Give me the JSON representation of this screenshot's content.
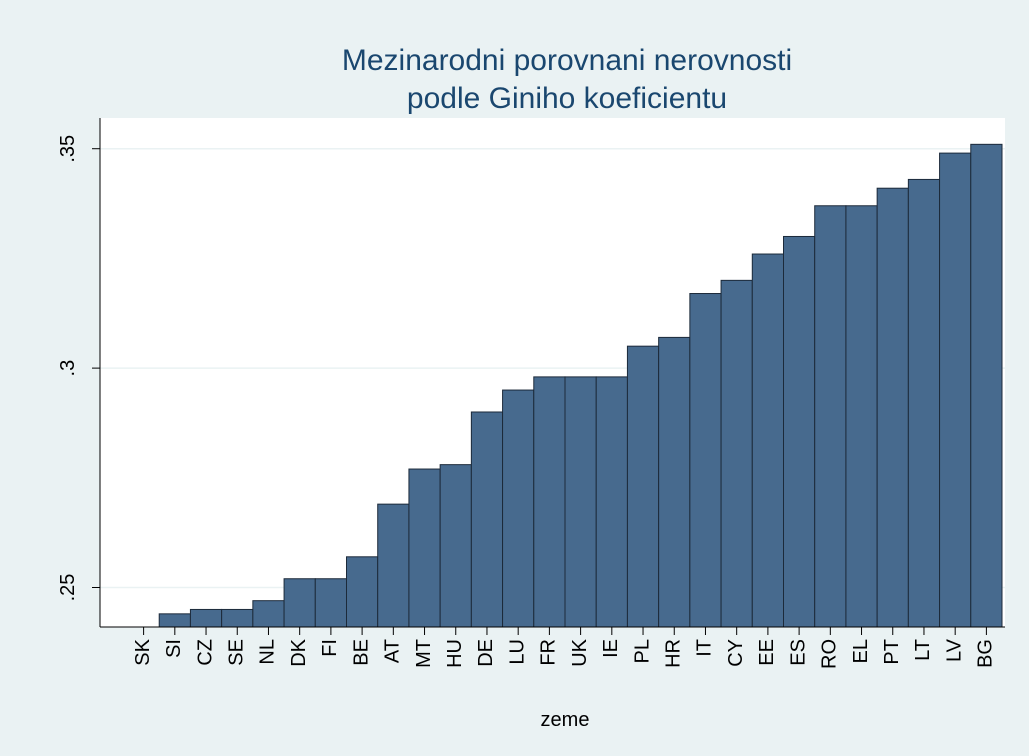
{
  "chart_data": {
    "type": "bar",
    "title": [
      "Mezinarodni porovnani nerovnosti",
      "podle Giniho koeficientu"
    ],
    "x_label": "zeme",
    "categories": [
      "SK",
      "SI",
      "CZ",
      "SE",
      "NL",
      "DK",
      "FI",
      "BE",
      "AT",
      "MT",
      "HU",
      "DE",
      "LU",
      "FR",
      "UK",
      "IE",
      "PL",
      "HR",
      "IT",
      "CY",
      "EE",
      "ES",
      "RO",
      "EL",
      "PT",
      "LT",
      "LV",
      "BG"
    ],
    "values": [
      0.237,
      0.244,
      0.245,
      0.245,
      0.247,
      0.252,
      0.252,
      0.257,
      0.269,
      0.277,
      0.278,
      0.29,
      0.295,
      0.298,
      0.298,
      0.298,
      0.305,
      0.307,
      0.317,
      0.32,
      0.326,
      0.33,
      0.337,
      0.337,
      0.341,
      0.343,
      0.349,
      0.351
    ],
    "color": "#476a8e",
    "ylim": [
      0.241,
      0.357
    ],
    "yticks": [
      {
        "value": 0.25,
        "label": ".25"
      },
      {
        "value": 0.3,
        "label": ".3"
      },
      {
        "value": 0.35,
        "label": ".35"
      }
    ],
    "grid": true
  }
}
